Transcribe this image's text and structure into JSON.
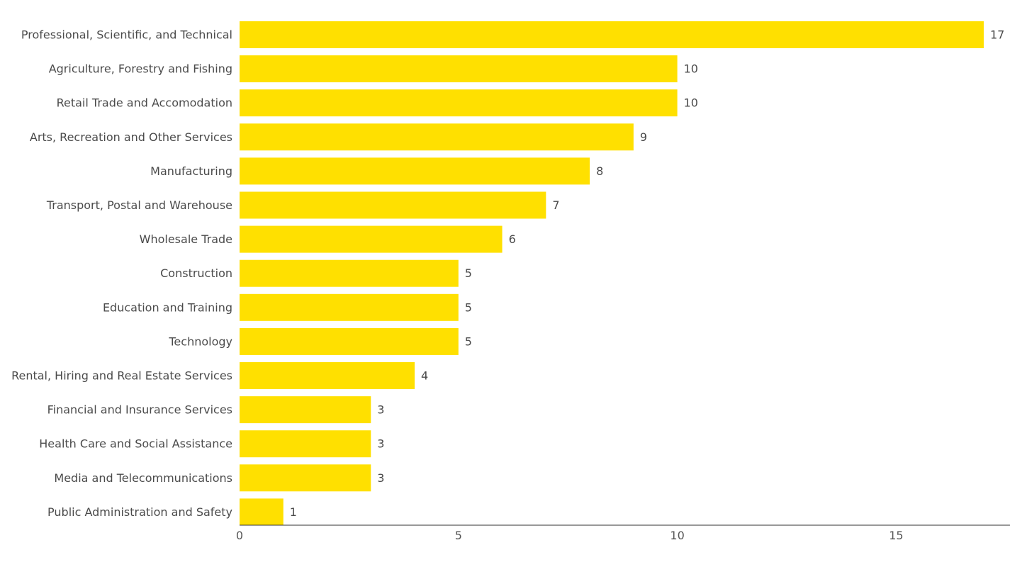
{
  "chart_data": {
    "type": "bar",
    "orientation": "horizontal",
    "categories": [
      "Professional, Scientific, and Technical",
      "Agriculture, Forestry and Fishing",
      "Retail Trade and Accomodation",
      "Arts, Recreation and Other Services",
      "Manufacturing",
      "Transport, Postal and Warehouse",
      "Wholesale Trade",
      "Construction",
      "Education and Training",
      "Technology",
      "Rental, Hiring and Real Estate Services",
      "Financial and Insurance Services",
      "Health Care and Social Assistance",
      "Media and Telecommunications",
      "Public Administration and Safety"
    ],
    "values": [
      17,
      10,
      10,
      9,
      8,
      7,
      6,
      5,
      5,
      5,
      4,
      3,
      3,
      3,
      1
    ],
    "value_labels": [
      "17",
      "10",
      "10",
      "9",
      "8",
      "7",
      "6",
      "5",
      "5",
      "5",
      "4",
      "3",
      "3",
      "3",
      "1"
    ],
    "xlim": [
      0,
      17.6
    ],
    "xticks": [
      0,
      5,
      10,
      15
    ],
    "xtick_labels": [
      "0",
      "5",
      "10",
      "15"
    ],
    "grid": false,
    "legend": "none",
    "title": "",
    "xlabel": "",
    "ylabel": "",
    "colors": {
      "bar": "#FFE000",
      "axis": "#333333",
      "text": "#4a4a4a"
    }
  }
}
